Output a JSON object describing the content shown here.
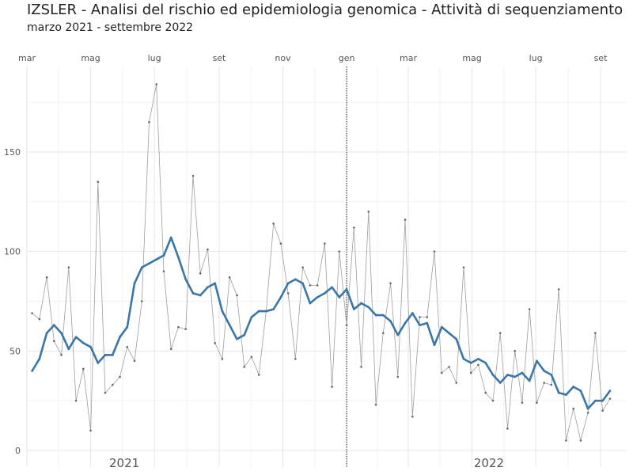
{
  "header": {
    "title": "IZSLER - Analisi del rischio ed epidemiologia genomica - Attività di sequenziamento",
    "subtitle": "marzo 2021 - settembre 2022"
  },
  "chart_data": {
    "type": "line",
    "x_start": "2021-03-06",
    "x_step_days": 7,
    "y_ticks": [
      0,
      50,
      100,
      150
    ],
    "ylim": [
      -5,
      188
    ],
    "month_ticks": [
      {
        "label": "mar",
        "date": "2021-03-01"
      },
      {
        "label": "mag",
        "date": "2021-05-01"
      },
      {
        "label": "lug",
        "date": "2021-07-01"
      },
      {
        "label": "set",
        "date": "2021-09-01"
      },
      {
        "label": "nov",
        "date": "2021-11-01"
      },
      {
        "label": "gen",
        "date": "2022-01-01"
      },
      {
        "label": "mar",
        "date": "2022-03-01"
      },
      {
        "label": "mag",
        "date": "2022-05-01"
      },
      {
        "label": "lug",
        "date": "2022-07-01"
      },
      {
        "label": "set",
        "date": "2022-09-01"
      }
    ],
    "year_labels": [
      {
        "label": "2021",
        "date": "2021-07-01"
      },
      {
        "label": "2022",
        "date": "2022-06-15"
      }
    ],
    "vline_date": "2022-01-01",
    "series": [
      {
        "kind": "weekly",
        "color": "#9e9e9e",
        "values": [
          69,
          66,
          87,
          55,
          48,
          92,
          25,
          41,
          10,
          135,
          29,
          33,
          37,
          52,
          45,
          75,
          165,
          184,
          90,
          51,
          62,
          61,
          138,
          89,
          101,
          54,
          46,
          87,
          78,
          42,
          47,
          38,
          70,
          114,
          104,
          79,
          46,
          92,
          83,
          83,
          104,
          32,
          100,
          63,
          112,
          42,
          120,
          23,
          59,
          84,
          37,
          116,
          17,
          67,
          67,
          100,
          39,
          42,
          34,
          92,
          39,
          43,
          29,
          25,
          59,
          11,
          50,
          24,
          71,
          24,
          34,
          33,
          81,
          5,
          21,
          5,
          19,
          59,
          20,
          26
        ]
      },
      {
        "kind": "smoothed",
        "color": "#3a76a8",
        "values": [
          40,
          46,
          59,
          63,
          59,
          51,
          57,
          54,
          52,
          44,
          48,
          48,
          57,
          62,
          84,
          92,
          94,
          96,
          98,
          107,
          97,
          86,
          79,
          78,
          82,
          84,
          70,
          63,
          56,
          58,
          67,
          70,
          70,
          71,
          77,
          84,
          86,
          84,
          74,
          77,
          79,
          82,
          77,
          81,
          71,
          74,
          72,
          68,
          68,
          65,
          58,
          64,
          69,
          63,
          64,
          53,
          62,
          59,
          56,
          46,
          44,
          46,
          44,
          38,
          34,
          38,
          37,
          39,
          35,
          45,
          40,
          38,
          29,
          28,
          32,
          30,
          21,
          25,
          25,
          30
        ]
      }
    ]
  }
}
